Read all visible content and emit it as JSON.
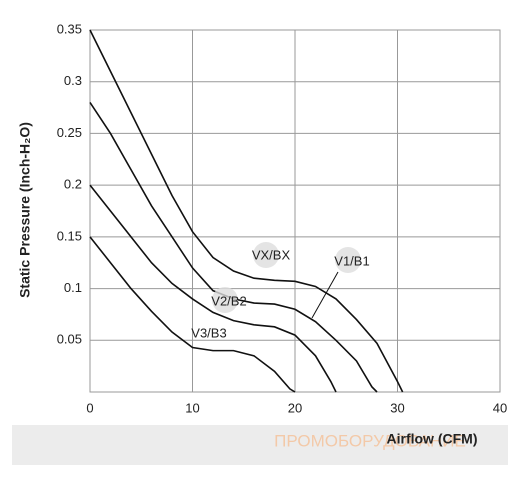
{
  "chart_data": {
    "type": "line",
    "x_label": "Airflow (CFM)",
    "y_label": "Static Pressure (Inch-H₂O)",
    "watermark": "ПРОМОБОРУДОВАНИЕ",
    "xlim": [
      0,
      40
    ],
    "xticks": [
      0,
      10,
      20,
      30,
      40
    ],
    "ylim": [
      0,
      0.35
    ],
    "yticks": [
      0.05,
      0.1,
      0.15,
      0.2,
      0.25,
      0.3,
      0.35
    ],
    "grid": true,
    "series": [
      {
        "name": "VX/BX",
        "color": "#111111",
        "x": [
          0,
          2,
          4,
          6,
          8,
          10,
          12,
          14,
          16,
          18,
          20,
          22,
          24,
          26,
          28,
          30,
          30.5
        ],
        "values": [
          0.35,
          0.31,
          0.27,
          0.23,
          0.19,
          0.155,
          0.13,
          0.117,
          0.11,
          0.108,
          0.107,
          0.102,
          0.09,
          0.07,
          0.047,
          0.01,
          0
        ]
      },
      {
        "name": "V1/B1",
        "color": "#111111",
        "x": [
          0,
          2,
          4,
          6,
          8,
          10,
          12,
          14,
          16,
          18,
          20,
          22,
          24,
          26,
          27.5,
          28
        ],
        "values": [
          0.28,
          0.25,
          0.215,
          0.18,
          0.15,
          0.12,
          0.098,
          0.09,
          0.086,
          0.085,
          0.08,
          0.068,
          0.05,
          0.03,
          0.005,
          0
        ]
      },
      {
        "name": "V2/B2",
        "color": "#111111",
        "x": [
          0,
          2,
          4,
          6,
          8,
          10,
          12,
          14,
          16,
          18,
          20,
          22,
          23.5,
          24
        ],
        "values": [
          0.2,
          0.175,
          0.15,
          0.125,
          0.105,
          0.09,
          0.077,
          0.069,
          0.065,
          0.063,
          0.055,
          0.035,
          0.01,
          0
        ]
      },
      {
        "name": "V3/B3",
        "color": "#111111",
        "x": [
          0,
          2,
          4,
          6,
          8,
          10,
          12,
          14,
          16,
          18,
          19.5,
          20
        ],
        "values": [
          0.15,
          0.125,
          0.1,
          0.078,
          0.058,
          0.043,
          0.04,
          0.04,
          0.035,
          0.02,
          0.003,
          0
        ]
      }
    ]
  }
}
